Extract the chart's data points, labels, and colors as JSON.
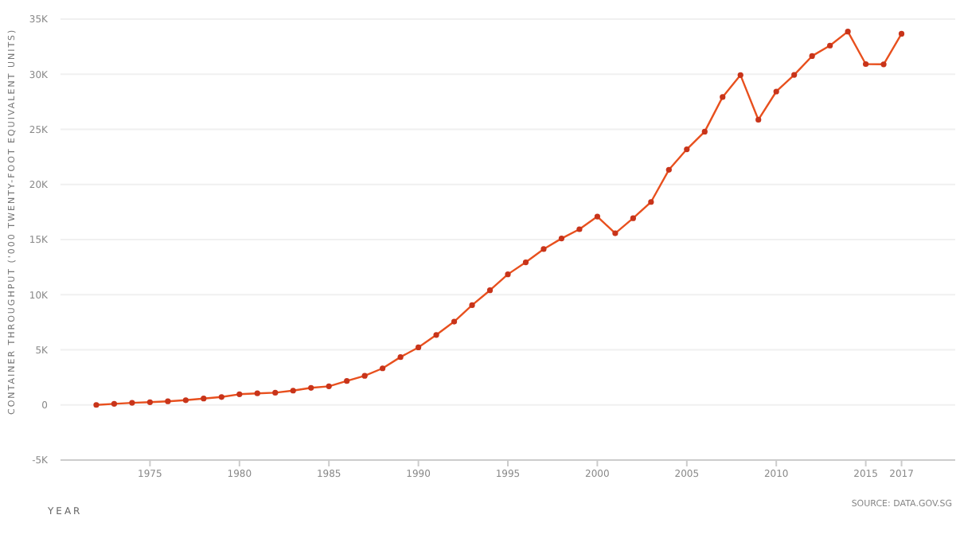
{
  "chart_data": {
    "type": "line",
    "xlabel": "YEAR",
    "ylabel": "CONTAINER THROUGHPUT ('000 TWENTY-FOOT EQUIVALENT UNITS)",
    "annotations": [
      "SOURCE: DATA.GOV.SG"
    ],
    "x": [
      1972,
      1973,
      1974,
      1975,
      1976,
      1977,
      1978,
      1979,
      1980,
      1981,
      1982,
      1983,
      1984,
      1985,
      1986,
      1987,
      1988,
      1989,
      1990,
      1991,
      1992,
      1993,
      1994,
      1995,
      1996,
      1997,
      1998,
      1999,
      2000,
      2001,
      2002,
      2003,
      2004,
      2005,
      2006,
      2007,
      2008,
      2009,
      2010,
      2011,
      2012,
      2013,
      2014,
      2015,
      2016,
      2017
    ],
    "series": [
      {
        "color": "#e8501e",
        "values": [
          0,
          100,
          190,
          250,
          330,
          430,
          580,
          720,
          970,
          1050,
          1110,
          1300,
          1550,
          1690,
          2170,
          2640,
          3320,
          4340,
          5220,
          6350,
          7560,
          9050,
          10400,
          11850,
          12940,
          14140,
          15100,
          15940,
          17090,
          15570,
          16940,
          18410,
          21330,
          23190,
          24790,
          27930,
          29920,
          25870,
          28430,
          29940,
          31650,
          32600,
          33870,
          30920,
          30900,
          33670
        ]
      }
    ],
    "xlim": [
      1970,
      2020
    ],
    "xticks": [
      1975,
      1980,
      1985,
      1990,
      1995,
      2000,
      2005,
      2010,
      2015,
      2017
    ],
    "ylim": [
      -5000,
      35000
    ],
    "yticks": [
      {
        "value": -5000,
        "label": "-5K"
      },
      {
        "value": 0,
        "label": "0"
      },
      {
        "value": 5000,
        "label": "5K"
      },
      {
        "value": 10000,
        "label": "10K"
      },
      {
        "value": 15000,
        "label": "15K"
      },
      {
        "value": 20000,
        "label": "20K"
      },
      {
        "value": 25000,
        "label": "25K"
      },
      {
        "value": 30000,
        "label": "30K"
      },
      {
        "value": 35000,
        "label": "35K"
      }
    ],
    "grid": "y",
    "marker": "circle",
    "line_style": "solid",
    "legend": false
  }
}
